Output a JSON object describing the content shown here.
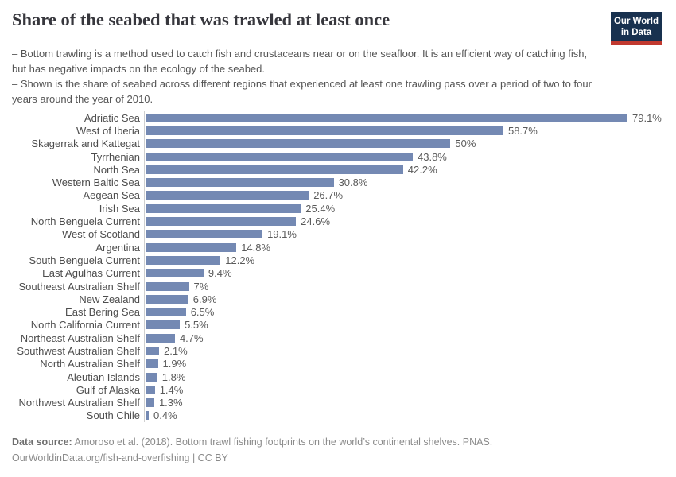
{
  "header": {
    "title": "Share of the seabed that was trawled at least once",
    "subtitle_lines": [
      "– Bottom trawling is a method used to catch fish and crustaceans near or on the seafloor. It is an efficient way of catching fish, but has negative impacts on the ecology of the seabed.",
      "– Shown is the share of seabed across different regions that experienced at least one trawling pass over a period of two to four years around the year of 2010."
    ],
    "logo": {
      "line1": "Our World",
      "line2": "in Data",
      "bg_color": "#18314f",
      "stripe_color": "#c1392f"
    }
  },
  "chart_data": {
    "type": "bar",
    "orientation": "horizontal",
    "title": "Share of the seabed that was trawled at least once",
    "unit": "%",
    "grid": false,
    "bar_color": "#7489b3",
    "value_label_position": "right-of-bar",
    "xlim": [
      0,
      85
    ],
    "categories": [
      "Adriatic Sea",
      "West of Iberia",
      "Skagerrak and Kattegat",
      "Tyrrhenian",
      "North Sea",
      "Western Baltic Sea",
      "Aegean Sea",
      "Irish Sea",
      "North Benguela Current",
      "West of Scotland",
      "Argentina",
      "South Benguela Current",
      "East Agulhas Current",
      "Southeast Australian Shelf",
      "New Zealand",
      "East Bering Sea",
      "North California Current",
      "Northeast Australian Shelf",
      "Southwest Australian Shelf",
      "North Australian Shelf",
      "Aleutian Islands",
      "Gulf of Alaska",
      "Northwest Australian Shelf",
      "South Chile"
    ],
    "values": [
      79.1,
      58.7,
      50,
      43.8,
      42.2,
      30.8,
      26.7,
      25.4,
      24.6,
      19.1,
      14.8,
      12.2,
      9.4,
      7,
      6.9,
      6.5,
      5.5,
      4.7,
      2.1,
      1.9,
      1.8,
      1.4,
      1.3,
      0.4
    ],
    "value_labels": [
      "79.1%",
      "58.7%",
      "50%",
      "43.8%",
      "42.2%",
      "30.8%",
      "26.7%",
      "25.4%",
      "24.6%",
      "19.1%",
      "14.8%",
      "12.2%",
      "9.4%",
      "7%",
      "6.9%",
      "6.5%",
      "5.5%",
      "4.7%",
      "2.1%",
      "1.9%",
      "1.8%",
      "1.4%",
      "1.3%",
      "0.4%"
    ]
  },
  "footer": {
    "datasource_label": "Data source:",
    "datasource_text": " Amoroso et al. (2018). Bottom trawl fishing footprints on the world’s continental shelves. PNAS.",
    "link_line": "OurWorldinData.org/fish-and-overfishing | CC BY"
  }
}
